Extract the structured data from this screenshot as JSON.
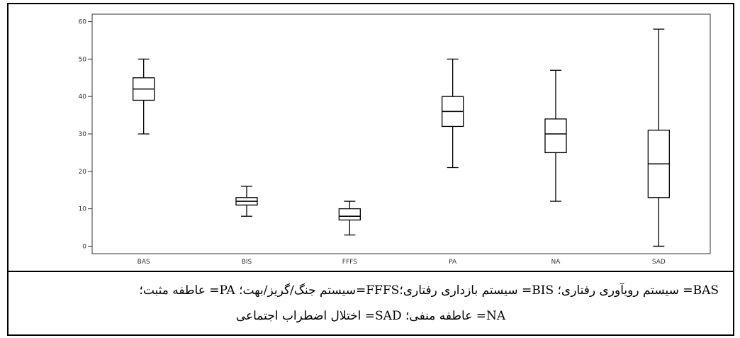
{
  "chart_data": {
    "type": "box",
    "categories": [
      "BAS",
      "BIS",
      "FFFS",
      "PA",
      "NA",
      "SAD"
    ],
    "boxes": [
      {
        "category": "BAS",
        "min": 30,
        "q1": 39,
        "median": 42,
        "q3": 45,
        "max": 50
      },
      {
        "category": "BIS",
        "min": 8,
        "q1": 11,
        "median": 12,
        "q3": 13,
        "max": 16
      },
      {
        "category": "FFFS",
        "min": 3,
        "q1": 7,
        "median": 8,
        "q3": 10,
        "max": 12
      },
      {
        "category": "PA",
        "min": 21,
        "q1": 32,
        "median": 36,
        "q3": 40,
        "max": 50
      },
      {
        "category": "NA",
        "min": 12,
        "q1": 25,
        "median": 30,
        "q3": 34,
        "max": 47
      },
      {
        "category": "SAD",
        "min": 0,
        "q1": 13,
        "median": 22,
        "q3": 31,
        "max": 58
      }
    ],
    "yticks": [
      0,
      10,
      20,
      30,
      40,
      50,
      60
    ],
    "ylim": [
      -2,
      62
    ],
    "title": "",
    "xlabel": "",
    "ylabel": "",
    "grid": false
  },
  "caption": {
    "line1": "BAS= سیستم رویآوری رفتاری؛ BIS= سیستم بازداری رفتاری؛FFFS=سیستم جنگ/گریز/بهت؛ PA= عاطفه مثبت؛",
    "line2": "NA= عاطفه منفی؛ SAD= اختلال اضطراب اجتماعی"
  }
}
